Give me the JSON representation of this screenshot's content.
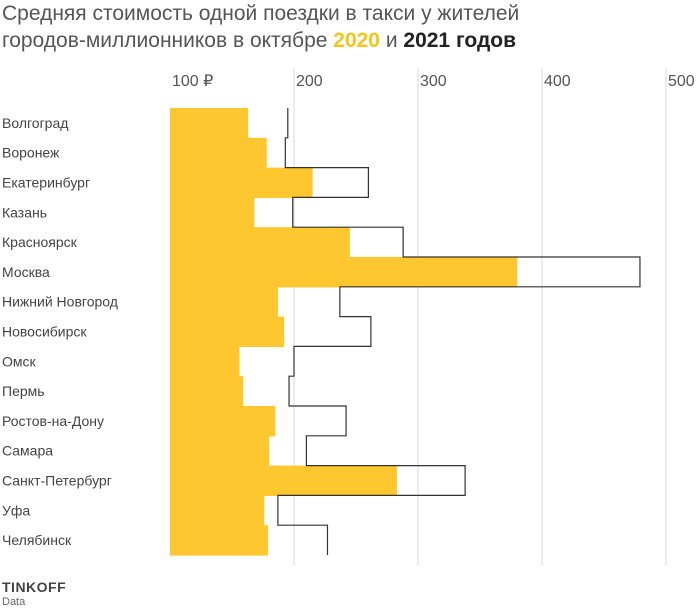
{
  "header": {
    "title_line1": "Средняя стоимость одной поездки в такси у жителей",
    "title_line2_prefix": "городов-миллионников в октябре ",
    "year_2020": "2020",
    "and_word": " и ",
    "year_2021_label": "2021 годов"
  },
  "brand": {
    "name": "TINKOFF",
    "sub": "Data"
  },
  "colors": {
    "bar_2020": "#fec62f",
    "outline_2021": "#333333",
    "grid": "#d9d9d9",
    "axis_text": "#555555"
  },
  "chart_data": {
    "type": "bar",
    "orientation": "horizontal",
    "x_ticks": [
      "100 ₽",
      "200",
      "300",
      "400",
      "500"
    ],
    "x_tick_values": [
      100,
      200,
      300,
      400,
      500
    ],
    "xlim": [
      100,
      500
    ],
    "grid": true,
    "categories": [
      "Волгоград",
      "Воронеж",
      "Екатеринбург",
      "Казань",
      "Красноярск",
      "Москва",
      "Нижний Новгород",
      "Новосибирск",
      "Омск",
      "Пермь",
      "Ростов-на-Дону",
      "Самара",
      "Санкт-Петербург",
      "Уфа",
      "Челябинск"
    ],
    "series": [
      {
        "name": "2020",
        "style": "filled",
        "values": [
          163,
          178,
          215,
          168,
          245,
          380,
          187,
          192,
          156,
          159,
          185,
          180,
          283,
          176,
          179
        ]
      },
      {
        "name": "2021",
        "style": "outline",
        "values": [
          195,
          193,
          260,
          199,
          288,
          479,
          237,
          262,
          200,
          196,
          242,
          210,
          338,
          187,
          227
        ]
      }
    ]
  }
}
